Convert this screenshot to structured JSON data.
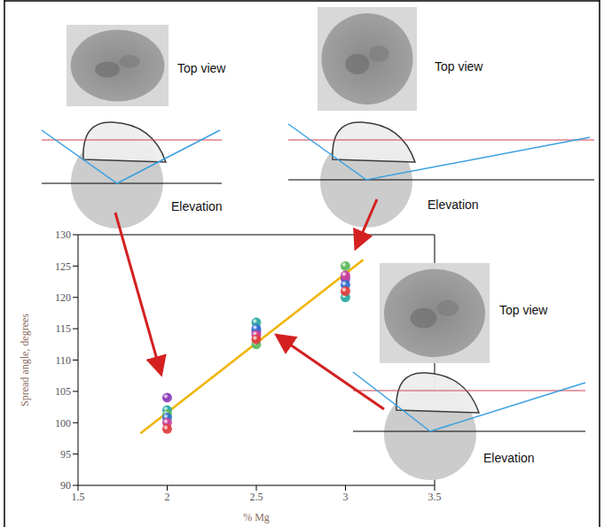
{
  "chart_data": {
    "type": "scatter",
    "x_label": "% Mg",
    "y_label": "Spread angle, degrees",
    "xlim": [
      1.5,
      3.5
    ],
    "xticks": [
      1.5,
      2,
      2.5,
      3,
      3.5
    ],
    "ylim": [
      90,
      130
    ],
    "yticks": [
      90,
      95,
      100,
      105,
      110,
      115,
      120,
      125,
      130
    ],
    "grid": false,
    "marker": "sphere",
    "x": [
      2,
      2.5,
      3
    ],
    "series": [
      {
        "color": "#8a3ab9",
        "values": [
          104,
          114.5,
          123
        ]
      },
      {
        "color": "#2aa9a0",
        "values": [
          102,
          116,
          120
        ]
      },
      {
        "color": "#5cb85c",
        "values": [
          101.3,
          112.5,
          125
        ]
      },
      {
        "color": "#2f6fd0",
        "values": [
          100.8,
          115,
          122
        ]
      },
      {
        "color": "#c8419a",
        "values": [
          100,
          114,
          123.5
        ]
      },
      {
        "color": "#e03c3c",
        "values": [
          99,
          113.3,
          121
        ]
      }
    ],
    "trendline": {
      "x": [
        1.85,
        3.1
      ],
      "values": [
        98.3,
        126
      ],
      "color": "#f0b400",
      "line_style": "solid"
    },
    "insets": [
      {
        "top_label": "Top view",
        "side_label": "Elevation"
      },
      {
        "top_label": "Top view",
        "side_label": "Elevation"
      },
      {
        "top_label": "Top view",
        "side_label": "Elevation"
      }
    ]
  }
}
